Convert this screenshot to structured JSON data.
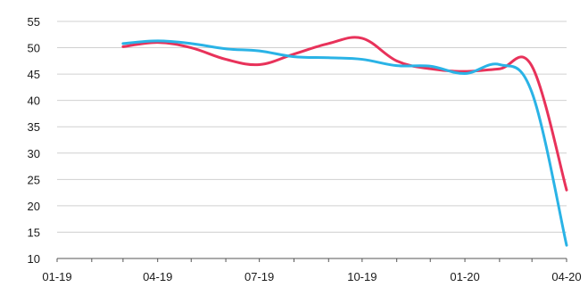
{
  "chart_data": {
    "type": "line",
    "title": "",
    "xlabel": "",
    "ylabel": "",
    "x_dates": [
      "2019-03-01",
      "2019-04-01",
      "2019-05-01",
      "2019-06-01",
      "2019-07-01",
      "2019-08-01",
      "2019-09-01",
      "2019-10-01",
      "2019-11-01",
      "2019-12-01",
      "2020-01-01",
      "2020-02-01",
      "2020-03-01",
      "2020-04-01"
    ],
    "ylim": [
      10,
      55
    ],
    "y_ticks": [
      10,
      15,
      20,
      25,
      30,
      35,
      40,
      45,
      50,
      55
    ],
    "x_ticks": [
      "01-19",
      "04-19",
      "07-19",
      "10-19",
      "01-20",
      "04-20"
    ],
    "x_tick_dates": [
      "2019-01-01",
      "2019-04-01",
      "2019-07-01",
      "2019-10-01",
      "2020-01-01",
      "2020-04-01"
    ],
    "grid": "horizontal",
    "series": [
      {
        "color": "#e8325a",
        "values": [
          50.2,
          51.0,
          50.0,
          47.8,
          46.8,
          48.8,
          50.8,
          51.8,
          47.5,
          46.0,
          45.5,
          46.0,
          46.5,
          23.0
        ]
      },
      {
        "color": "#2ab3e6",
        "values": [
          50.8,
          51.3,
          50.8,
          49.8,
          49.4,
          48.3,
          48.1,
          47.8,
          46.6,
          46.5,
          45.1,
          46.8,
          41.5,
          12.5
        ]
      }
    ]
  }
}
